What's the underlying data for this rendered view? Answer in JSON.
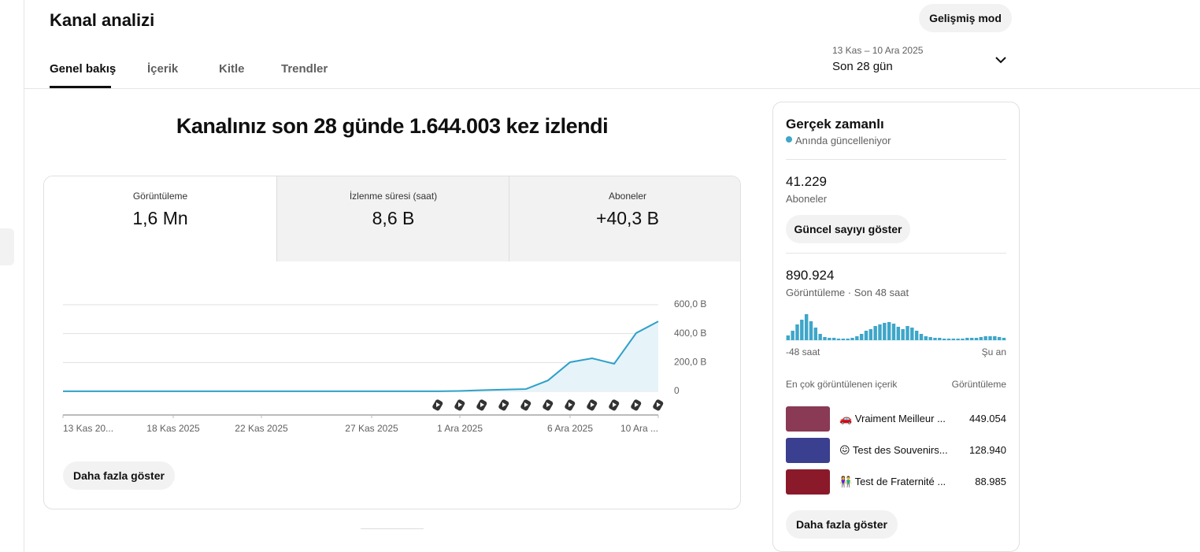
{
  "header": {
    "title": "Kanal analizi",
    "advanced_button": "Gelişmiş mod"
  },
  "tabs": [
    "Genel bakış",
    "İçerik",
    "Kitle",
    "Trendler"
  ],
  "date_range": {
    "range": "13 Kas – 10 Ara 2025",
    "label": "Son 28 gün"
  },
  "headline": "Kanalınız son 28 günde 1.644.003 kez izlendi",
  "metrics": [
    {
      "label": "Görüntüleme",
      "value": "1,6 Mn"
    },
    {
      "label": "İzlenme süresi (saat)",
      "value": "8,6 B"
    },
    {
      "label": "Aboneler",
      "value": "+40,3 B"
    }
  ],
  "more_button": "Daha fazla göster",
  "chart_data": [
    {
      "type": "line",
      "color": "#2ea0c9",
      "fill": "#e6f3f9",
      "categories": [
        "13 Kas 20...",
        null,
        null,
        null,
        null,
        "18 Kas 2025",
        null,
        null,
        null,
        "22 Kas 2025",
        null,
        null,
        null,
        null,
        "27 Kas 2025",
        null,
        null,
        null,
        "1 Ara 2025",
        null,
        null,
        null,
        null,
        "6 Ara 2025",
        null,
        null,
        null,
        "10 Ara ..."
      ],
      "values": [
        1000,
        1000,
        1000,
        1000,
        1000,
        1000,
        1000,
        1000,
        1000,
        1000,
        1000,
        1000,
        1000,
        1000,
        1000,
        1000,
        1000,
        1000,
        3000,
        8000,
        12000,
        16000,
        76000,
        202000,
        229000,
        191000,
        404000,
        485000
      ],
      "ylim": [
        0,
        600000
      ],
      "yticks": [
        0,
        {
          "value": 200000,
          "label": "200,0 B"
        },
        {
          "value": 400000,
          "label": "400,0 B"
        },
        {
          "value": 600000,
          "label": "600,0 B"
        }
      ],
      "grid": true
    },
    {
      "type": "bar",
      "color": "#3ea6c9",
      "categories": [
        "-48 saat",
        null,
        null,
        null,
        null,
        null,
        null,
        null,
        null,
        null,
        null,
        null,
        null,
        null,
        null,
        null,
        null,
        null,
        null,
        null,
        null,
        null,
        null,
        null,
        null,
        null,
        null,
        null,
        null,
        null,
        null,
        null,
        null,
        null,
        null,
        null,
        null,
        null,
        null,
        null,
        null,
        null,
        null,
        null,
        null,
        null,
        null,
        "Şu an"
      ],
      "values": [
        12000,
        24000,
        40000,
        52000,
        66000,
        48000,
        32000,
        16000,
        8000,
        6000,
        6000,
        4000,
        4000,
        4000,
        6000,
        10000,
        16000,
        24000,
        28000,
        36000,
        40000,
        44000,
        46000,
        42000,
        34000,
        28000,
        36000,
        32000,
        24000,
        16000,
        10000,
        8000,
        6000,
        6000,
        4000,
        4000,
        4000,
        4000,
        4000,
        6000,
        6000,
        6000,
        8000,
        10000,
        10000,
        10000,
        8000,
        6000
      ]
    }
  ],
  "realtime": {
    "title": "Gerçek zamanlı",
    "status": "Anında güncelleniyor",
    "subscribers": "41.229",
    "subscribers_label": "Aboneler",
    "subscribers_button": "Güncel sayıyı göster",
    "views": "890.924",
    "views_label": "Görüntüleme · Son 48 saat",
    "top_header": "En çok görüntülenen içerik",
    "top_views_header": "Görüntüleme",
    "top_items": [
      {
        "title": "🚗 Vraiment Meilleur ...",
        "views": "449.054"
      },
      {
        "title": "😖 Test des Souvenirs...",
        "views": "128.940"
      },
      {
        "title": "👫 Test de Fraternité ...",
        "views": "88.985"
      }
    ],
    "more_button": "Daha fazla göster"
  }
}
